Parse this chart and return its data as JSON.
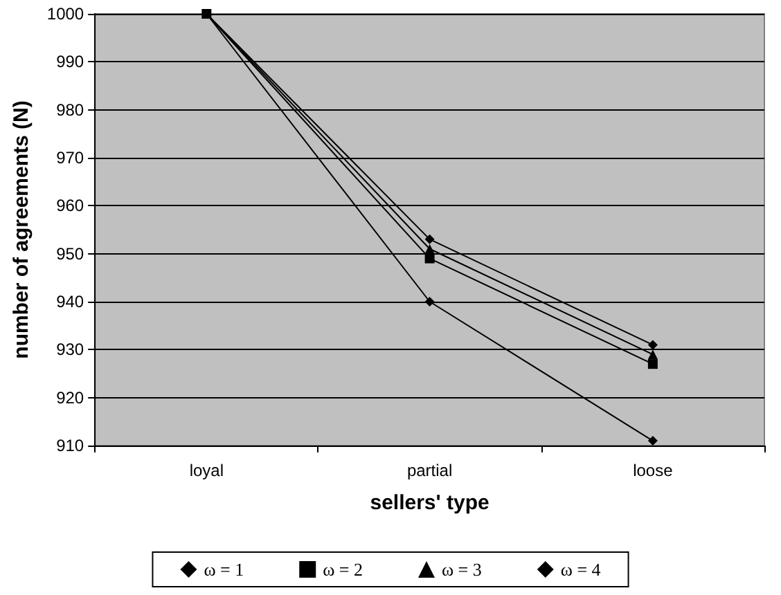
{
  "chart_data": {
    "type": "line",
    "xlabel": "sellers' type",
    "ylabel": "number of agreements (N)",
    "categories": [
      "loyal",
      "partial",
      "loose"
    ],
    "series": [
      {
        "name": "ω = 1",
        "color": "#000000",
        "marker": "diamond",
        "values": [
          1000,
          940,
          911
        ]
      },
      {
        "name": "ω = 2",
        "color": "#000000",
        "marker": "square",
        "values": [
          1000,
          949,
          927
        ]
      },
      {
        "name": "ω = 3",
        "color": "#000000",
        "marker": "triangle",
        "values": [
          1000,
          951,
          929
        ]
      },
      {
        "name": "ω = 4",
        "color": "#000000",
        "marker": "diamond",
        "values": [
          1000,
          953,
          931
        ]
      }
    ],
    "ylim": [
      910,
      1000
    ],
    "yticks": [
      910,
      920,
      930,
      940,
      950,
      960,
      970,
      980,
      990,
      1000
    ],
    "grid": "y",
    "legend": "bottom",
    "line_style": "solid"
  }
}
